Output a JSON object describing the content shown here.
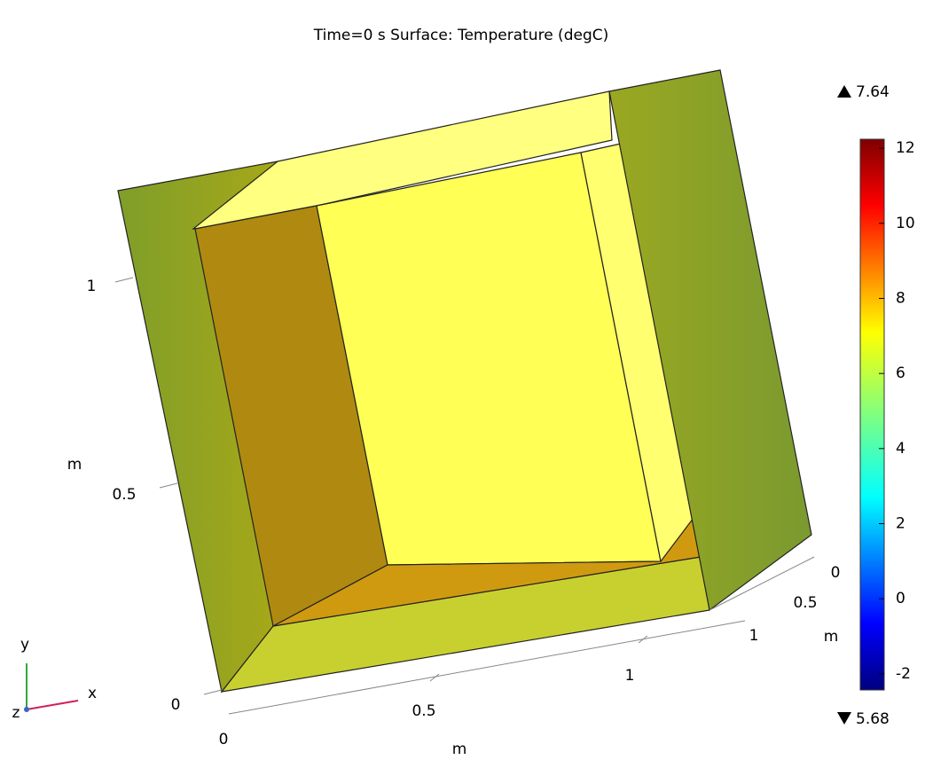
{
  "title": "Time=0 s   Surface: Temperature (degC)",
  "colorbar": {
    "lim": [
      -2.43,
      12.24
    ],
    "ticks": [
      12,
      10,
      8,
      6,
      4,
      2,
      0,
      -2
    ],
    "max": 7.64,
    "min": 5.68
  },
  "axes": {
    "y": {
      "label": "m",
      "ticks": [
        1,
        0.5,
        0
      ]
    },
    "x": {
      "label": "m",
      "ticks": [
        0,
        0.5,
        1
      ]
    },
    "z": {
      "label": "m",
      "ticks": [
        0,
        0.5,
        1
      ]
    }
  },
  "triad": {
    "y": "y",
    "x": "x",
    "z": "z"
  }
}
